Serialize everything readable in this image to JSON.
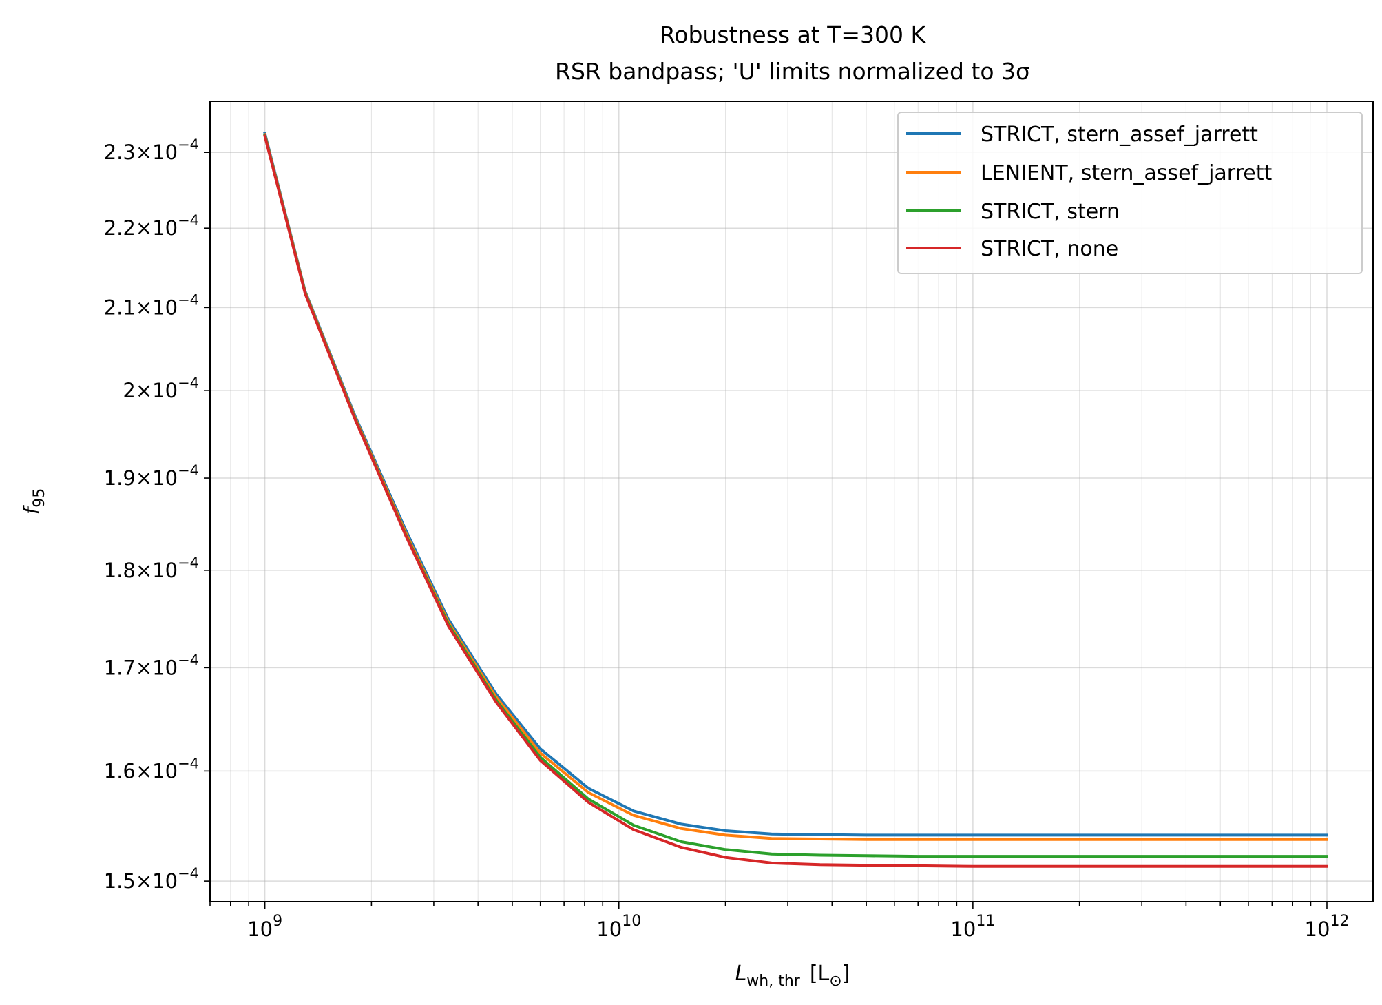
{
  "chart_data": {
    "type": "line",
    "title_line1": "Robustness at T=300 K",
    "title_line2": "RSR bandpass; 'U' limits normalized to 3σ",
    "xlabel_main": "L",
    "xlabel_sub": "wh, thr",
    "xlabel_unit": "[L",
    "xlabel_unit_sub": "⊙",
    "xlabel_close": "]",
    "ylabel_main": "f",
    "ylabel_sub": "95",
    "xscale": "log",
    "yscale": "log",
    "xlim": [
      700000000.0,
      1350000000000.0
    ],
    "ylim": [
      0.0001482,
      0.000237
    ],
    "grid": "both",
    "legend_position": "top-right",
    "x_ticks": [
      {
        "value": 1000000000.0,
        "base": "10",
        "exp": "9"
      },
      {
        "value": 10000000000.0,
        "base": "10",
        "exp": "10"
      },
      {
        "value": 100000000000.0,
        "base": "10",
        "exp": "11"
      },
      {
        "value": 1000000000000.0,
        "base": "10",
        "exp": "12"
      }
    ],
    "y_ticks": [
      {
        "value": 0.00015,
        "mant": "1.5",
        "times": "×",
        "base": "10",
        "exp": "−4"
      },
      {
        "value": 0.00016,
        "mant": "1.6",
        "times": "×",
        "base": "10",
        "exp": "−4"
      },
      {
        "value": 0.00017,
        "mant": "1.7",
        "times": "×",
        "base": "10",
        "exp": "−4"
      },
      {
        "value": 0.00018,
        "mant": "1.8",
        "times": "×",
        "base": "10",
        "exp": "−4"
      },
      {
        "value": 0.00019,
        "mant": "1.9",
        "times": "×",
        "base": "10",
        "exp": "−4"
      },
      {
        "value": 0.0002,
        "mant": "2",
        "times": "×",
        "base": "10",
        "exp": "−4"
      },
      {
        "value": 0.00021,
        "mant": "2.1",
        "times": "×",
        "base": "10",
        "exp": "−4"
      },
      {
        "value": 0.00022,
        "mant": "2.2",
        "times": "×",
        "base": "10",
        "exp": "−4"
      },
      {
        "value": 0.00023,
        "mant": "2.3",
        "times": "×",
        "base": "10",
        "exp": "−4"
      }
    ],
    "x": [
      1000000000.0,
      1300000000.0,
      1800000000.0,
      2500000000.0,
      3300000000.0,
      4500000000.0,
      6000000000.0,
      8200000000.0,
      11000000000.0,
      15000000000.0,
      20000000000.0,
      27000000000.0,
      37000000000.0,
      50000000000.0,
      70000000000.0,
      100000000000.0,
      200000000000.0,
      500000000000.0,
      1000000000000.0
    ],
    "series": [
      {
        "name": "STRICT, stern_assef_jarrett",
        "color": "#1f77b4",
        "values": [
          0.0002326,
          0.000212,
          0.000197,
          0.0001843,
          0.0001749,
          0.0001674,
          0.0001621,
          0.0001584,
          0.0001563,
          0.0001551,
          0.0001545,
          0.0001542,
          0.00015415,
          0.0001541,
          0.0001541,
          0.0001541,
          0.0001541,
          0.0001541,
          0.0001541
        ]
      },
      {
        "name": "LENIENT, stern_assef_jarrett",
        "color": "#ff7f0e",
        "values": [
          0.0002324,
          0.0002119,
          0.0001968,
          0.000184,
          0.0001746,
          0.0001671,
          0.0001617,
          0.000158,
          0.0001559,
          0.0001547,
          0.0001541,
          0.0001538,
          0.00015375,
          0.0001537,
          0.0001537,
          0.0001537,
          0.0001537,
          0.0001537,
          0.0001537
        ]
      },
      {
        "name": "STRICT, stern",
        "color": "#2ca02c",
        "values": [
          0.0002323,
          0.0002118,
          0.0001967,
          0.0001838,
          0.0001744,
          0.0001668,
          0.0001613,
          0.0001574,
          0.000155,
          0.0001535,
          0.0001528,
          0.0001524,
          0.0001523,
          0.00015225,
          0.0001522,
          0.0001522,
          0.0001522,
          0.0001522,
          0.0001522
        ]
      },
      {
        "name": "STRICT, none",
        "color": "#d62728",
        "values": [
          0.0002322,
          0.0002117,
          0.0001966,
          0.0001837,
          0.0001742,
          0.0001666,
          0.000161,
          0.0001571,
          0.0001546,
          0.000153,
          0.0001521,
          0.0001516,
          0.00015145,
          0.0001514,
          0.00015135,
          0.0001513,
          0.0001513,
          0.0001513,
          0.0001513
        ]
      }
    ]
  }
}
